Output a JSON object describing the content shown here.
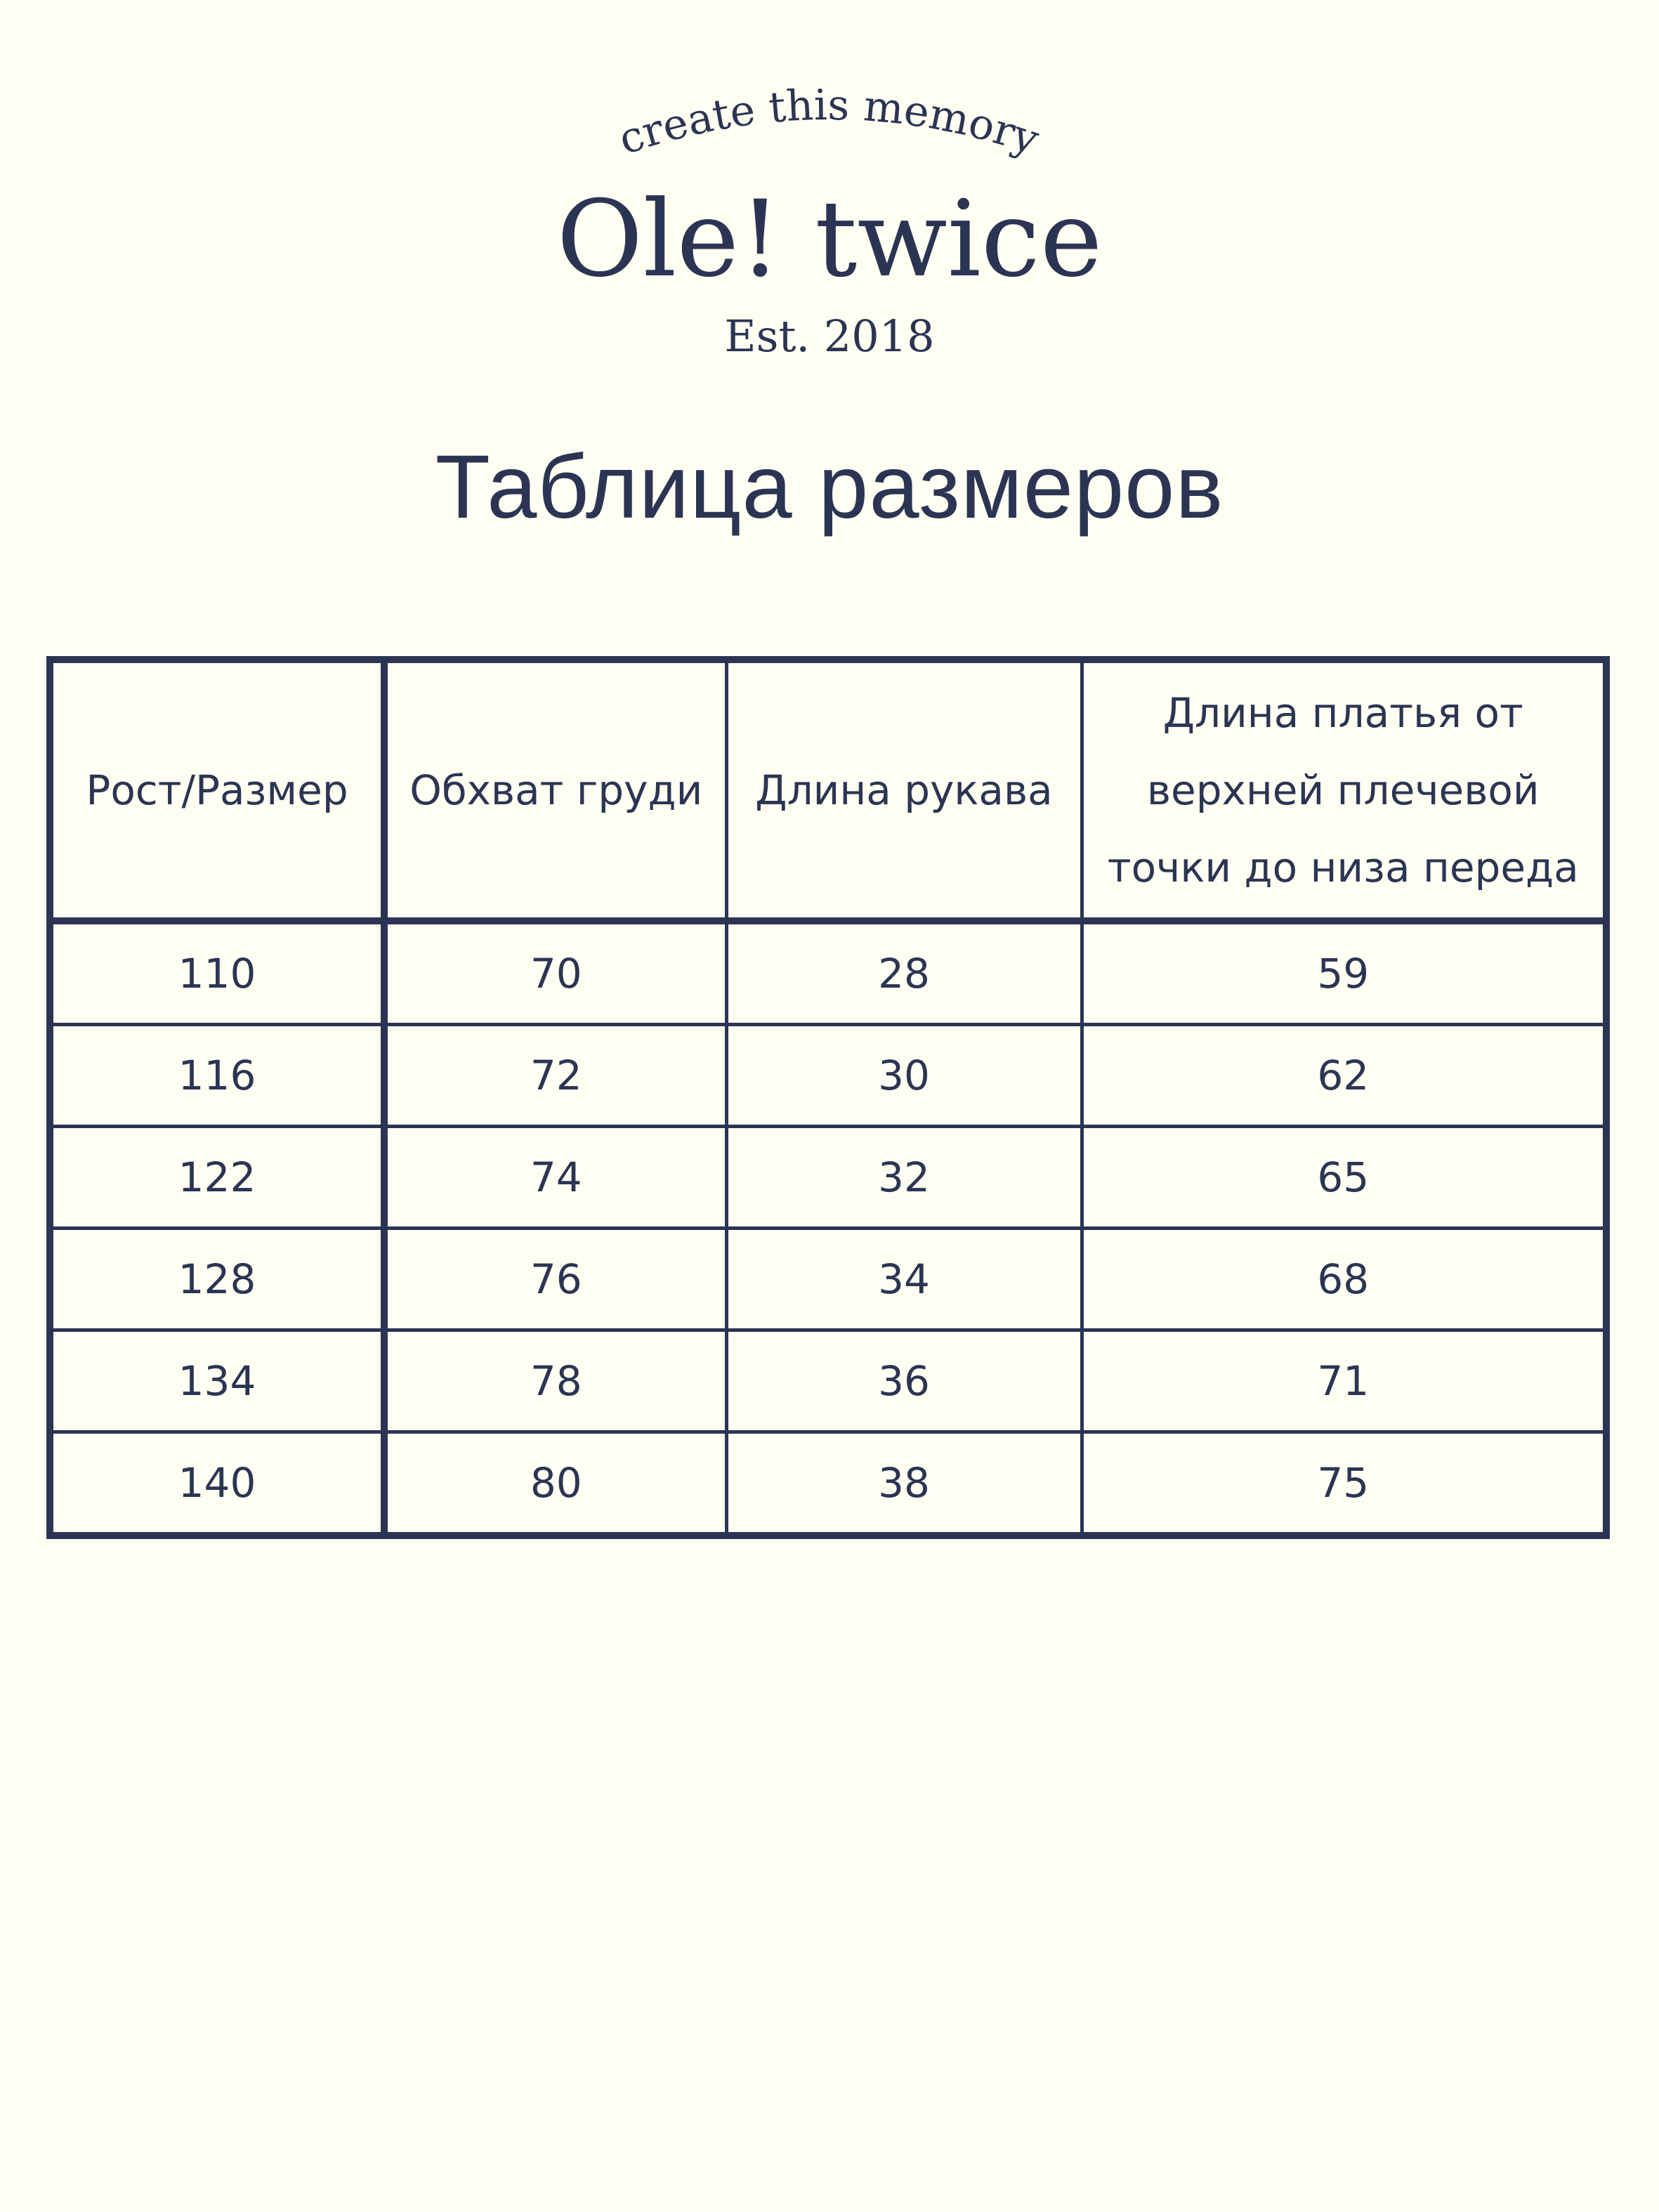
{
  "header": {
    "tagline": "create this memory",
    "brand": "Ole! twice",
    "established": "Est. 2018"
  },
  "title": "Таблица размеров",
  "table": {
    "columns": [
      "Рост/Размер",
      "Обхват груди",
      "Длина рукава",
      "Длина платья от верхней плечевой точки до низа переда"
    ],
    "rows": [
      [
        110,
        70,
        28,
        59
      ],
      [
        116,
        72,
        30,
        62
      ],
      [
        122,
        74,
        32,
        65
      ],
      [
        128,
        76,
        34,
        68
      ],
      [
        134,
        78,
        36,
        71
      ],
      [
        140,
        80,
        38,
        75
      ]
    ]
  }
}
